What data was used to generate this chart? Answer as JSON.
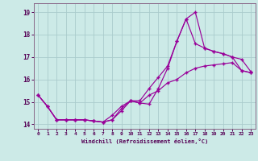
{
  "xlabel": "Windchill (Refroidissement éolien,°C)",
  "bg_color": "#cceae7",
  "line_color": "#990099",
  "grid_color": "#aacccc",
  "xlim": [
    -0.5,
    23.5
  ],
  "ylim": [
    13.8,
    19.4
  ],
  "yticks": [
    14,
    15,
    16,
    17,
    18,
    19
  ],
  "xticks": [
    0,
    1,
    2,
    3,
    4,
    5,
    6,
    7,
    8,
    9,
    10,
    11,
    12,
    13,
    14,
    15,
    16,
    17,
    18,
    19,
    20,
    21,
    22,
    23
  ],
  "line1_x": [
    0,
    1,
    2,
    3,
    4,
    5,
    6,
    7,
    8,
    9,
    10,
    11,
    12,
    13,
    14,
    15,
    16,
    17,
    18,
    19,
    20,
    21,
    22,
    23
  ],
  "line1_y": [
    15.3,
    14.8,
    14.2,
    14.2,
    14.2,
    14.2,
    14.15,
    14.1,
    14.2,
    14.7,
    15.05,
    14.95,
    14.9,
    15.6,
    16.5,
    17.7,
    18.7,
    19.0,
    17.4,
    17.25,
    17.15,
    17.0,
    16.4,
    16.3
  ],
  "line2_x": [
    0,
    1,
    2,
    3,
    4,
    5,
    6,
    7,
    8,
    9,
    10,
    11,
    12,
    13,
    14,
    15,
    16,
    17,
    18,
    19,
    20,
    21,
    22,
    23
  ],
  "line2_y": [
    15.3,
    14.8,
    14.2,
    14.2,
    14.2,
    14.2,
    14.15,
    14.1,
    14.4,
    14.8,
    15.05,
    15.05,
    15.6,
    16.1,
    16.6,
    17.7,
    18.7,
    17.6,
    17.4,
    17.25,
    17.15,
    17.0,
    16.9,
    16.35
  ],
  "line3_x": [
    0,
    1,
    2,
    3,
    4,
    5,
    6,
    7,
    8,
    9,
    10,
    11,
    12,
    13,
    14,
    15,
    16,
    17,
    18,
    19,
    20,
    21,
    22,
    23
  ],
  "line3_y": [
    15.3,
    14.8,
    14.2,
    14.2,
    14.2,
    14.2,
    14.15,
    14.1,
    14.2,
    14.6,
    15.05,
    14.95,
    15.3,
    15.5,
    15.85,
    16.0,
    16.3,
    16.5,
    16.6,
    16.65,
    16.7,
    16.75,
    16.4,
    16.3
  ]
}
